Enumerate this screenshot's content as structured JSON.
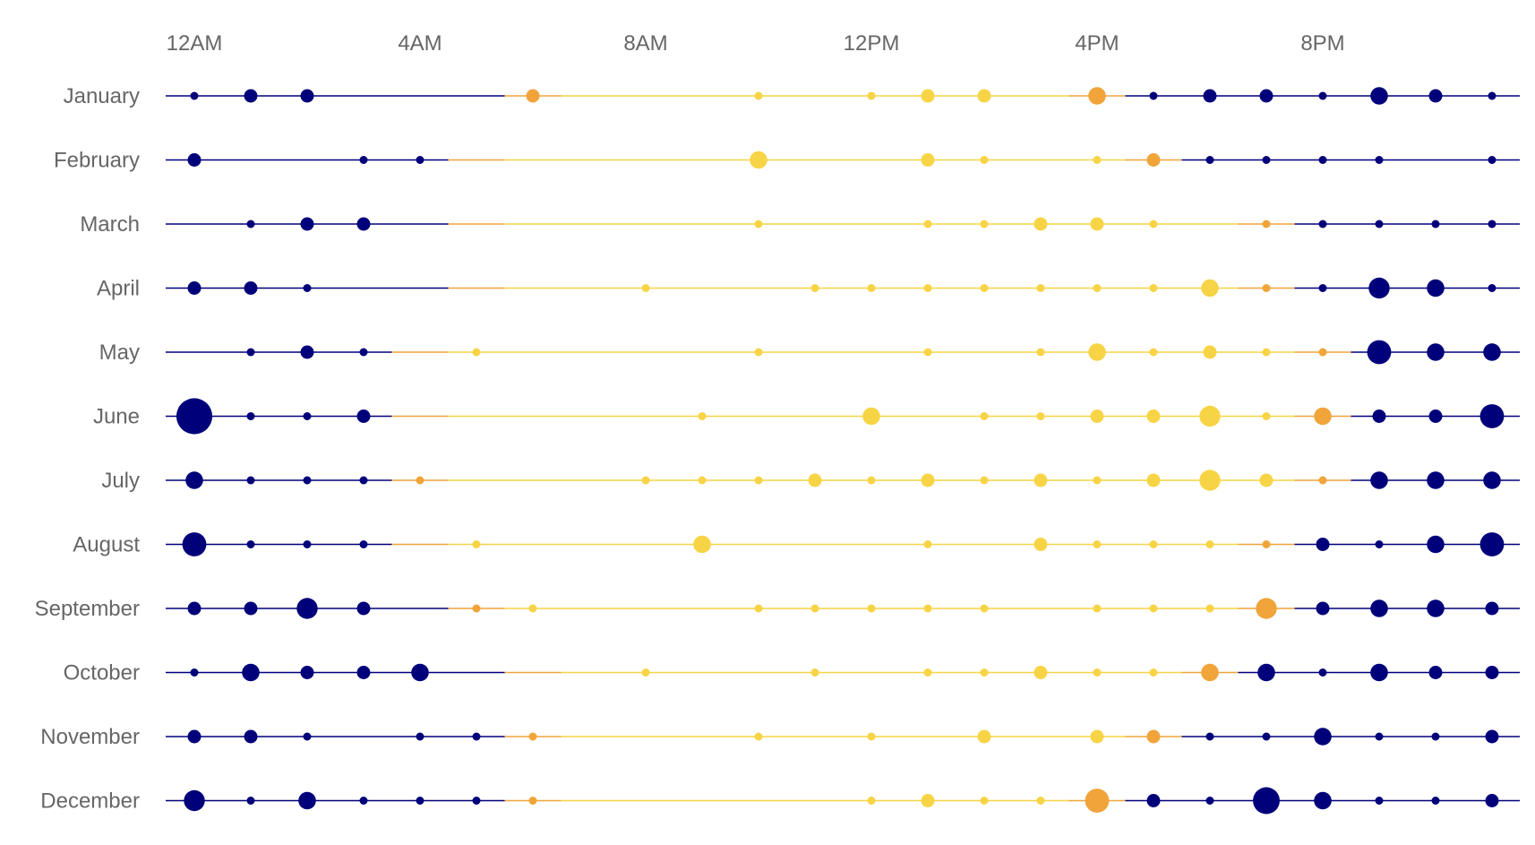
{
  "chart_data": {
    "type": "scatter",
    "title": "",
    "xlabel": "",
    "ylabel": "",
    "x_ticks": [
      "12AM",
      "4AM",
      "8AM",
      "12PM",
      "4PM",
      "8PM"
    ],
    "x_tick_hours": [
      0,
      4,
      8,
      12,
      16,
      20
    ],
    "x_range": [
      0,
      23
    ],
    "grid": false,
    "legend": "none",
    "colors": {
      "night": "#00007a",
      "day": "#f7d445",
      "twilight": "#f0a43a"
    },
    "months": [
      {
        "name": "January",
        "sunrise": 7,
        "sunset": 16,
        "points": [
          [
            0,
            1
          ],
          [
            1,
            2
          ],
          [
            2,
            2
          ],
          [
            6,
            2
          ],
          [
            10,
            1
          ],
          [
            12,
            1
          ],
          [
            13,
            2
          ],
          [
            14,
            2
          ],
          [
            16,
            3
          ],
          [
            17,
            1
          ],
          [
            18,
            2
          ],
          [
            19,
            2
          ],
          [
            20,
            1
          ],
          [
            21,
            3
          ],
          [
            22,
            2
          ],
          [
            23,
            1
          ]
        ]
      },
      {
        "name": "February",
        "sunrise": 6,
        "sunset": 17,
        "points": [
          [
            0,
            2
          ],
          [
            3,
            1
          ],
          [
            4,
            1
          ],
          [
            10,
            3
          ],
          [
            13,
            2
          ],
          [
            14,
            1
          ],
          [
            16,
            1
          ],
          [
            17,
            2
          ],
          [
            18,
            1
          ],
          [
            19,
            1
          ],
          [
            20,
            1
          ],
          [
            21,
            1
          ],
          [
            23,
            1
          ]
        ]
      },
      {
        "name": "March",
        "sunrise": 6,
        "sunset": 19,
        "points": [
          [
            1,
            1
          ],
          [
            2,
            2
          ],
          [
            3,
            2
          ],
          [
            10,
            1
          ],
          [
            13,
            1
          ],
          [
            14,
            1
          ],
          [
            15,
            2
          ],
          [
            16,
            2
          ],
          [
            17,
            1
          ],
          [
            19,
            1
          ],
          [
            20,
            1
          ],
          [
            21,
            1
          ],
          [
            22,
            1
          ],
          [
            23,
            1
          ]
        ]
      },
      {
        "name": "April",
        "sunrise": 6,
        "sunset": 19,
        "points": [
          [
            0,
            2
          ],
          [
            1,
            2
          ],
          [
            2,
            1
          ],
          [
            8,
            1
          ],
          [
            11,
            1
          ],
          [
            12,
            1
          ],
          [
            13,
            1
          ],
          [
            14,
            1
          ],
          [
            15,
            1
          ],
          [
            16,
            1
          ],
          [
            17,
            1
          ],
          [
            18,
            3
          ],
          [
            19,
            1
          ],
          [
            20,
            1
          ],
          [
            21,
            4
          ],
          [
            22,
            3
          ],
          [
            23,
            1
          ]
        ]
      },
      {
        "name": "May",
        "sunrise": 5,
        "sunset": 20,
        "points": [
          [
            1,
            1
          ],
          [
            2,
            2
          ],
          [
            3,
            1
          ],
          [
            5,
            1
          ],
          [
            10,
            1
          ],
          [
            13,
            1
          ],
          [
            15,
            1
          ],
          [
            16,
            3
          ],
          [
            17,
            1
          ],
          [
            18,
            2
          ],
          [
            19,
            1
          ],
          [
            20,
            1
          ],
          [
            21,
            5
          ],
          [
            22,
            3
          ],
          [
            23,
            3
          ]
        ]
      },
      {
        "name": "June",
        "sunrise": 5,
        "sunset": 20,
        "points": [
          [
            0,
            10
          ],
          [
            1,
            1
          ],
          [
            2,
            1
          ],
          [
            3,
            2
          ],
          [
            9,
            1
          ],
          [
            12,
            3
          ],
          [
            14,
            1
          ],
          [
            15,
            1
          ],
          [
            16,
            2
          ],
          [
            17,
            2
          ],
          [
            18,
            4
          ],
          [
            19,
            1
          ],
          [
            20,
            3
          ],
          [
            21,
            2
          ],
          [
            22,
            2
          ],
          [
            23,
            5
          ]
        ]
      },
      {
        "name": "July",
        "sunrise": 5,
        "sunset": 20,
        "points": [
          [
            0,
            3
          ],
          [
            1,
            1
          ],
          [
            2,
            1
          ],
          [
            3,
            1
          ],
          [
            4,
            1
          ],
          [
            8,
            1
          ],
          [
            9,
            1
          ],
          [
            10,
            1
          ],
          [
            11,
            2
          ],
          [
            12,
            1
          ],
          [
            13,
            2
          ],
          [
            14,
            1
          ],
          [
            15,
            2
          ],
          [
            16,
            1
          ],
          [
            17,
            2
          ],
          [
            18,
            4
          ],
          [
            19,
            2
          ],
          [
            20,
            1
          ],
          [
            21,
            3
          ],
          [
            22,
            3
          ],
          [
            23,
            3
          ]
        ]
      },
      {
        "name": "August",
        "sunrise": 5,
        "sunset": 19,
        "points": [
          [
            0,
            5
          ],
          [
            1,
            1
          ],
          [
            2,
            1
          ],
          [
            3,
            1
          ],
          [
            5,
            1
          ],
          [
            9,
            3
          ],
          [
            13,
            1
          ],
          [
            15,
            2
          ],
          [
            16,
            1
          ],
          [
            17,
            1
          ],
          [
            18,
            1
          ],
          [
            19,
            1
          ],
          [
            20,
            2
          ],
          [
            21,
            1
          ],
          [
            22,
            3
          ],
          [
            23,
            5
          ]
        ]
      },
      {
        "name": "September",
        "sunrise": 6,
        "sunset": 19,
        "points": [
          [
            0,
            2
          ],
          [
            1,
            2
          ],
          [
            2,
            4
          ],
          [
            3,
            2
          ],
          [
            5,
            1
          ],
          [
            6,
            1
          ],
          [
            10,
            1
          ],
          [
            11,
            1
          ],
          [
            12,
            1
          ],
          [
            13,
            1
          ],
          [
            14,
            1
          ],
          [
            16,
            1
          ],
          [
            17,
            1
          ],
          [
            18,
            1
          ],
          [
            19,
            4
          ],
          [
            20,
            2
          ],
          [
            21,
            3
          ],
          [
            22,
            3
          ],
          [
            23,
            2
          ]
        ]
      },
      {
        "name": "October",
        "sunrise": 7,
        "sunset": 18,
        "points": [
          [
            0,
            1
          ],
          [
            1,
            3
          ],
          [
            2,
            2
          ],
          [
            3,
            2
          ],
          [
            4,
            3
          ],
          [
            8,
            1
          ],
          [
            11,
            1
          ],
          [
            13,
            1
          ],
          [
            14,
            1
          ],
          [
            15,
            2
          ],
          [
            16,
            1
          ],
          [
            17,
            1
          ],
          [
            18,
            3
          ],
          [
            19,
            3
          ],
          [
            20,
            1
          ],
          [
            21,
            3
          ],
          [
            22,
            2
          ],
          [
            23,
            2
          ]
        ]
      },
      {
        "name": "November",
        "sunrise": 7,
        "sunset": 17,
        "points": [
          [
            0,
            2
          ],
          [
            1,
            2
          ],
          [
            2,
            1
          ],
          [
            4,
            1
          ],
          [
            5,
            1
          ],
          [
            6,
            1
          ],
          [
            10,
            1
          ],
          [
            12,
            1
          ],
          [
            14,
            2
          ],
          [
            16,
            2
          ],
          [
            17,
            2
          ],
          [
            18,
            1
          ],
          [
            19,
            1
          ],
          [
            20,
            3
          ],
          [
            21,
            1
          ],
          [
            22,
            1
          ],
          [
            23,
            2
          ]
        ]
      },
      {
        "name": "December",
        "sunrise": 7,
        "sunset": 16,
        "points": [
          [
            0,
            4
          ],
          [
            1,
            1
          ],
          [
            2,
            3
          ],
          [
            3,
            1
          ],
          [
            4,
            1
          ],
          [
            5,
            1
          ],
          [
            6,
            1
          ],
          [
            12,
            1
          ],
          [
            13,
            2
          ],
          [
            14,
            1
          ],
          [
            15,
            1
          ],
          [
            16,
            5
          ],
          [
            17,
            2
          ],
          [
            18,
            1
          ],
          [
            19,
            6
          ],
          [
            20,
            3
          ],
          [
            21,
            1
          ],
          [
            22,
            1
          ],
          [
            23,
            2
          ]
        ]
      }
    ]
  }
}
